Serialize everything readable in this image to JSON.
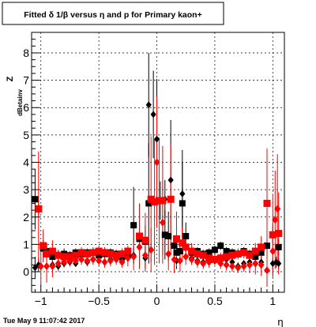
{
  "title": "Fitted δ 1/β versus η and p for Primary kaon+",
  "timestamp": "Tue May  9 11:07:42 2017",
  "colors": {
    "series_black": "#000000",
    "series_red": "#ff0000",
    "frame": "#000000",
    "grid": "#000000"
  },
  "chart_data": {
    "type": "scatter",
    "title": "Fitted δ 1/β versus η and p for Primary kaon+",
    "xlabel": "η",
    "ylabel": "Z",
    "ylabel_subscript": "dBetainv",
    "xlim": [
      -1.08,
      1.1
    ],
    "ylim": [
      -0.75,
      8.75
    ],
    "xticks": [
      -1,
      -0.5,
      0,
      0.5,
      1
    ],
    "xtick_labels": [
      "−1",
      "−0.5",
      "0",
      "0.5",
      "1"
    ],
    "yticks": [
      0,
      1,
      2,
      3,
      4,
      5,
      6,
      7,
      8
    ],
    "ytick_labels": [
      "0",
      "1",
      "2",
      "3",
      "4",
      "5",
      "6",
      "7",
      "8"
    ],
    "grid": true,
    "legend": "none",
    "series": [
      {
        "marker": "square",
        "color": "black",
        "filled": true,
        "points": [
          {
            "x": -1.05,
            "y": 2.65,
            "err": 1.1
          },
          {
            "x": -1.02,
            "y": 2.3,
            "err": 0.3
          },
          {
            "x": -0.98,
            "y": 0.85,
            "err": 0.3
          },
          {
            "x": -0.95,
            "y": 0.75,
            "err": 0.25
          },
          {
            "x": -0.9,
            "y": 0.55,
            "err": 0.2
          },
          {
            "x": -0.85,
            "y": 0.6,
            "err": 0.2
          },
          {
            "x": -0.8,
            "y": 0.65,
            "err": 0.2
          },
          {
            "x": -0.75,
            "y": 0.6,
            "err": 0.15
          },
          {
            "x": -0.7,
            "y": 0.7,
            "err": 0.15
          },
          {
            "x": -0.65,
            "y": 0.65,
            "err": 0.15
          },
          {
            "x": -0.6,
            "y": 0.7,
            "err": 0.15
          },
          {
            "x": -0.55,
            "y": 0.7,
            "err": 0.15
          },
          {
            "x": -0.5,
            "y": 0.6,
            "err": 0.15
          },
          {
            "x": -0.45,
            "y": 0.65,
            "err": 0.15
          },
          {
            "x": -0.4,
            "y": 0.7,
            "err": 0.15
          },
          {
            "x": -0.35,
            "y": 0.65,
            "err": 0.15
          },
          {
            "x": -0.3,
            "y": 0.55,
            "err": 0.15
          },
          {
            "x": -0.25,
            "y": 0.6,
            "err": 0.15
          },
          {
            "x": -0.2,
            "y": 1.7,
            "err": 1.4
          },
          {
            "x": -0.15,
            "y": 1.2,
            "err": 0.6
          },
          {
            "x": -0.1,
            "y": 1.1,
            "err": 0.6
          },
          {
            "x": -0.07,
            "y": 2.5,
            "err": 2.2
          },
          {
            "x": 0.07,
            "y": 1.35,
            "err": 0.9
          },
          {
            "x": 0.1,
            "y": 1.3,
            "err": 0.9
          },
          {
            "x": 0.15,
            "y": 0.95,
            "err": 0.3
          },
          {
            "x": 0.17,
            "y": 0.7,
            "err": 0.3
          },
          {
            "x": 0.2,
            "y": 0.75,
            "err": 0.2
          },
          {
            "x": 0.22,
            "y": 2.5,
            "err": 1.5
          },
          {
            "x": 0.25,
            "y": 1.3,
            "err": 0.5
          },
          {
            "x": 0.3,
            "y": 0.7,
            "err": 0.15
          },
          {
            "x": 0.35,
            "y": 0.75,
            "err": 0.15
          },
          {
            "x": 0.4,
            "y": 0.65,
            "err": 0.15
          },
          {
            "x": 0.45,
            "y": 0.7,
            "err": 0.15
          },
          {
            "x": 0.5,
            "y": 0.8,
            "err": 0.15
          },
          {
            "x": 0.55,
            "y": 0.95,
            "err": 0.15
          },
          {
            "x": 0.6,
            "y": 0.75,
            "err": 0.15
          },
          {
            "x": 0.65,
            "y": 0.7,
            "err": 0.15
          },
          {
            "x": 0.7,
            "y": 0.65,
            "err": 0.15
          },
          {
            "x": 0.75,
            "y": 0.75,
            "err": 0.15
          },
          {
            "x": 0.8,
            "y": 0.65,
            "err": 0.15
          },
          {
            "x": 0.85,
            "y": 0.55,
            "err": 0.15
          },
          {
            "x": 0.9,
            "y": 0.7,
            "err": 0.2
          },
          {
            "x": 0.95,
            "y": 0.95,
            "err": 0.3
          },
          {
            "x": 1.0,
            "y": 1.35,
            "err": 0.3
          },
          {
            "x": 1.05,
            "y": 0.9,
            "err": 0.3
          }
        ]
      },
      {
        "marker": "diamond",
        "color": "black",
        "filled": true,
        "points": [
          {
            "x": -1.05,
            "y": 0.15,
            "err": 0.4
          },
          {
            "x": -1.02,
            "y": 0.25,
            "err": 0.25
          },
          {
            "x": -0.9,
            "y": 0.25,
            "err": 0.15
          },
          {
            "x": -0.85,
            "y": 0.2,
            "err": 0.1
          },
          {
            "x": -0.8,
            "y": 0.3,
            "err": 0.1
          },
          {
            "x": -0.75,
            "y": 0.35,
            "err": 0.1
          },
          {
            "x": -0.7,
            "y": 0.3,
            "err": 0.1
          },
          {
            "x": -0.6,
            "y": 0.35,
            "err": 0.1
          },
          {
            "x": -0.5,
            "y": 0.4,
            "err": 0.1
          },
          {
            "x": -0.4,
            "y": 0.45,
            "err": 0.1
          },
          {
            "x": -0.3,
            "y": 0.4,
            "err": 0.1
          },
          {
            "x": -0.2,
            "y": 0.6,
            "err": 0.3
          },
          {
            "x": -0.1,
            "y": 0.5,
            "err": 0.4
          },
          {
            "x": -0.07,
            "y": 6.1,
            "err": 1.9
          },
          {
            "x": -0.03,
            "y": 5.75,
            "err": 1.6
          },
          {
            "x": 0.0,
            "y": 4.85,
            "err": 2.2
          },
          {
            "x": 0.03,
            "y": 2.6,
            "err": 0.7
          },
          {
            "x": 0.07,
            "y": 2.65,
            "err": 0.7
          },
          {
            "x": 0.12,
            "y": 3.35,
            "err": 2.2
          },
          {
            "x": 0.17,
            "y": 0.4,
            "err": 0.3
          },
          {
            "x": 0.22,
            "y": 2.85,
            "err": 1.6
          },
          {
            "x": 0.3,
            "y": 0.5,
            "err": 0.2
          },
          {
            "x": 0.35,
            "y": 0.4,
            "err": 0.15
          },
          {
            "x": 0.4,
            "y": 0.35,
            "err": 0.15
          },
          {
            "x": 0.45,
            "y": 0.45,
            "err": 0.15
          },
          {
            "x": 0.5,
            "y": 0.4,
            "err": 0.15
          },
          {
            "x": 0.55,
            "y": 0.5,
            "err": 0.15
          },
          {
            "x": 0.6,
            "y": 0.45,
            "err": 0.15
          },
          {
            "x": 0.65,
            "y": 0.35,
            "err": 0.1
          },
          {
            "x": 0.7,
            "y": 0.2,
            "err": 0.1
          },
          {
            "x": 0.75,
            "y": 0.3,
            "err": 0.1
          },
          {
            "x": 0.8,
            "y": 0.35,
            "err": 0.1
          },
          {
            "x": 0.85,
            "y": 0.3,
            "err": 0.1
          },
          {
            "x": 0.9,
            "y": 0.35,
            "err": 0.15
          },
          {
            "x": 1.0,
            "y": 0.3,
            "err": 0.2
          },
          {
            "x": 1.03,
            "y": 0.35,
            "err": 0.2
          },
          {
            "x": 1.05,
            "y": 0.3,
            "err": 0.2
          }
        ]
      },
      {
        "marker": "square",
        "color": "red",
        "filled": true,
        "points": [
          {
            "x": -1.02,
            "y": 2.3,
            "err": 2.1
          },
          {
            "x": -0.98,
            "y": 0.95,
            "err": 0.6
          },
          {
            "x": -0.95,
            "y": 0.65,
            "err": 0.4
          },
          {
            "x": -0.9,
            "y": 0.75,
            "err": 0.4
          },
          {
            "x": -0.85,
            "y": 0.6,
            "err": 0.2
          },
          {
            "x": -0.8,
            "y": 0.55,
            "err": 0.2
          },
          {
            "x": -0.75,
            "y": 0.55,
            "err": 0.2
          },
          {
            "x": -0.7,
            "y": 0.6,
            "err": 0.2
          },
          {
            "x": -0.65,
            "y": 0.7,
            "err": 0.2
          },
          {
            "x": -0.6,
            "y": 0.65,
            "err": 0.2
          },
          {
            "x": -0.55,
            "y": 0.7,
            "err": 0.2
          },
          {
            "x": -0.5,
            "y": 0.75,
            "err": 0.2
          },
          {
            "x": -0.45,
            "y": 0.7,
            "err": 0.2
          },
          {
            "x": -0.4,
            "y": 0.65,
            "err": 0.2
          },
          {
            "x": -0.35,
            "y": 0.6,
            "err": 0.2
          },
          {
            "x": -0.3,
            "y": 0.65,
            "err": 0.2
          },
          {
            "x": -0.25,
            "y": 0.75,
            "err": 0.2
          },
          {
            "x": -0.15,
            "y": 1.3,
            "err": 1.2
          },
          {
            "x": -0.1,
            "y": 1.15,
            "err": 1.0
          },
          {
            "x": -0.05,
            "y": 2.65,
            "err": 2.3
          },
          {
            "x": -0.02,
            "y": 2.55,
            "err": 2.3
          },
          {
            "x": 0.02,
            "y": 2.6,
            "err": 2.3
          },
          {
            "x": 0.05,
            "y": 2.6,
            "err": 2.0
          },
          {
            "x": 0.12,
            "y": 2.65,
            "err": 2.0
          },
          {
            "x": 0.17,
            "y": 1.2,
            "err": 1.0
          },
          {
            "x": 0.22,
            "y": 1.05,
            "err": 0.6
          },
          {
            "x": 0.25,
            "y": 0.9,
            "err": 0.4
          },
          {
            "x": 0.3,
            "y": 0.75,
            "err": 0.3
          },
          {
            "x": 0.35,
            "y": 0.65,
            "err": 0.25
          },
          {
            "x": 0.4,
            "y": 0.6,
            "err": 0.2
          },
          {
            "x": 0.45,
            "y": 0.5,
            "err": 0.2
          },
          {
            "x": 0.5,
            "y": 0.45,
            "err": 0.2
          },
          {
            "x": 0.55,
            "y": 0.5,
            "err": 0.2
          },
          {
            "x": 0.6,
            "y": 0.55,
            "err": 0.2
          },
          {
            "x": 0.65,
            "y": 0.6,
            "err": 0.2
          },
          {
            "x": 0.7,
            "y": 0.65,
            "err": 0.2
          },
          {
            "x": 0.75,
            "y": 0.7,
            "err": 0.2
          },
          {
            "x": 0.8,
            "y": 0.6,
            "err": 0.2
          },
          {
            "x": 0.85,
            "y": 0.75,
            "err": 0.3
          },
          {
            "x": 0.9,
            "y": 0.9,
            "err": 0.4
          },
          {
            "x": 0.95,
            "y": 2.5,
            "err": 2.0
          },
          {
            "x": 1.0,
            "y": 1.35,
            "err": 1.5
          },
          {
            "x": 1.05,
            "y": 1.4,
            "err": 1.5
          }
        ]
      },
      {
        "marker": "diamond",
        "color": "red",
        "filled": true,
        "points": [
          {
            "x": -1.0,
            "y": 0.2,
            "err": 0.7
          },
          {
            "x": -0.95,
            "y": 0.2,
            "err": 0.6
          },
          {
            "x": -0.9,
            "y": 0.2,
            "err": 0.4
          },
          {
            "x": -0.85,
            "y": 0.3,
            "err": 0.3
          },
          {
            "x": -0.8,
            "y": 0.35,
            "err": 0.2
          },
          {
            "x": -0.75,
            "y": 0.4,
            "err": 0.2
          },
          {
            "x": -0.7,
            "y": 0.4,
            "err": 0.2
          },
          {
            "x": -0.65,
            "y": 0.45,
            "err": 0.2
          },
          {
            "x": -0.6,
            "y": 0.4,
            "err": 0.2
          },
          {
            "x": -0.55,
            "y": 0.45,
            "err": 0.2
          },
          {
            "x": -0.5,
            "y": 0.4,
            "err": 0.2
          },
          {
            "x": -0.45,
            "y": 0.35,
            "err": 0.2
          },
          {
            "x": -0.4,
            "y": 0.4,
            "err": 0.2
          },
          {
            "x": -0.35,
            "y": 0.45,
            "err": 0.2
          },
          {
            "x": -0.3,
            "y": 0.35,
            "err": 0.2
          },
          {
            "x": -0.25,
            "y": 0.5,
            "err": 0.3
          },
          {
            "x": -0.2,
            "y": 0.55,
            "err": 0.5
          },
          {
            "x": -0.15,
            "y": 0.9,
            "err": 0.8
          },
          {
            "x": -0.1,
            "y": 0.6,
            "err": 0.6
          },
          {
            "x": -0.05,
            "y": 0.8,
            "err": 0.8
          },
          {
            "x": 0.0,
            "y": 4.0,
            "err": 2.4
          },
          {
            "x": 0.05,
            "y": 1.8,
            "err": 1.5
          },
          {
            "x": 0.1,
            "y": 0.65,
            "err": 0.6
          },
          {
            "x": 0.15,
            "y": 0.45,
            "err": 0.5
          },
          {
            "x": 0.2,
            "y": 0.4,
            "err": 0.4
          },
          {
            "x": 0.25,
            "y": 0.55,
            "err": 0.3
          },
          {
            "x": 0.3,
            "y": 0.45,
            "err": 0.2
          },
          {
            "x": 0.35,
            "y": 0.35,
            "err": 0.2
          },
          {
            "x": 0.4,
            "y": 0.3,
            "err": 0.2
          },
          {
            "x": 0.45,
            "y": 0.35,
            "err": 0.2
          },
          {
            "x": 0.5,
            "y": 0.45,
            "err": 0.2
          },
          {
            "x": 0.55,
            "y": 0.3,
            "err": 0.2
          },
          {
            "x": 0.6,
            "y": 0.25,
            "err": 0.2
          },
          {
            "x": 0.65,
            "y": 0.2,
            "err": 0.2
          },
          {
            "x": 0.7,
            "y": 0.15,
            "err": 0.2
          },
          {
            "x": 0.75,
            "y": 0.2,
            "err": 0.2
          },
          {
            "x": 0.8,
            "y": 0.25,
            "err": 0.3
          },
          {
            "x": 0.85,
            "y": 0.3,
            "err": 0.4
          },
          {
            "x": 0.9,
            "y": 0.25,
            "err": 0.4
          },
          {
            "x": 0.95,
            "y": 0.05,
            "err": 0.6
          },
          {
            "x": 1.0,
            "y": 0.75,
            "err": 1.0
          },
          {
            "x": 1.02,
            "y": 1.9,
            "err": 1.8
          },
          {
            "x": 1.04,
            "y": 2.3,
            "err": 2.0
          }
        ]
      }
    ]
  }
}
